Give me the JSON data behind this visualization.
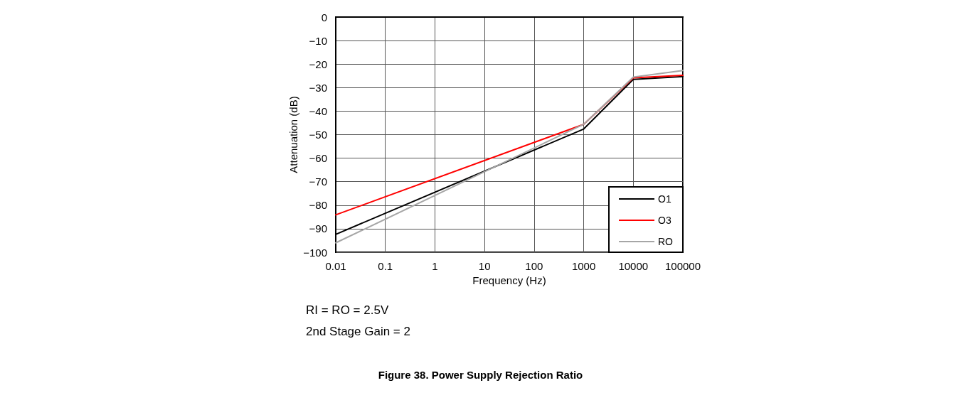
{
  "chart_data": {
    "type": "line",
    "title": "Figure 38. Power Supply Rejection Ratio",
    "xlabel": "Frequency (Hz)",
    "ylabel": "Attenuation (dB)",
    "x": [
      0.01,
      1000,
      10000,
      100000
    ],
    "series": [
      {
        "name": "O1",
        "color": "#000000",
        "values": [
          -92.4,
          -47.6,
          -26.5,
          -25.3
        ]
      },
      {
        "name": "O3",
        "color": "#ff0000",
        "values": [
          -84.1,
          -45.6,
          -25.8,
          -24.8
        ]
      },
      {
        "name": "RO",
        "color": "#a6a6a6",
        "values": [
          -96,
          -45.6,
          -25.5,
          -22.7
        ]
      }
    ],
    "log": "x",
    "xlim": [
      0.01,
      100000
    ],
    "xticks": [
      0.01,
      0.1,
      1,
      10,
      100,
      1000,
      10000,
      100000
    ],
    "ylim": [
      -100,
      0
    ],
    "yticks": [
      {
        "value": -100,
        "label": "−100"
      },
      {
        "value": -90,
        "label": "−90"
      },
      {
        "value": -80,
        "label": "−80"
      },
      {
        "value": -70,
        "label": "−70"
      },
      {
        "value": -60,
        "label": "−60"
      },
      {
        "value": -50,
        "label": "−50"
      },
      {
        "value": -40,
        "label": "−40"
      },
      {
        "value": -30,
        "label": "−30"
      },
      {
        "value": -20,
        "label": "−20"
      },
      {
        "value": -10,
        "label": "−10"
      },
      0
    ],
    "grid": true,
    "legend": "bottom right",
    "marker": "none",
    "line_style": "solid",
    "annotations": [
      "RI = RO = 2.5V",
      "2nd Stage Gain = 2"
    ]
  }
}
